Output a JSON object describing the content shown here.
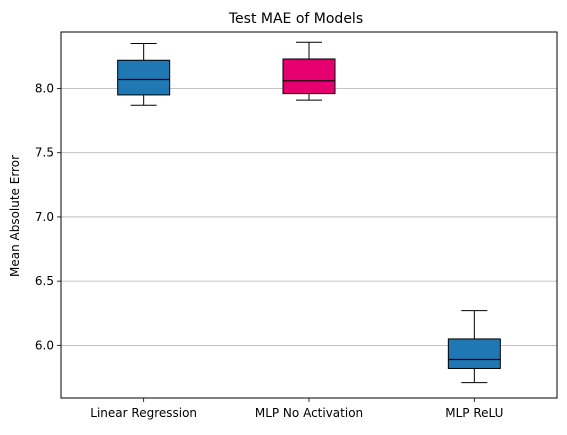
{
  "chart_data": {
    "type": "box",
    "title": "Test MAE of Models",
    "xlabel": "",
    "ylabel": "Mean Absolute Error",
    "categories": [
      "Linear Regression",
      "MLP No Activation",
      "MLP ReLU"
    ],
    "ylim": [
      5.59,
      8.44
    ],
    "yticks": [
      6.0,
      6.5,
      7.0,
      7.5,
      8.0
    ],
    "ytick_labels": [
      "6.0",
      "6.5",
      "7.0",
      "7.5",
      "8.0"
    ],
    "grid": {
      "y": true,
      "x": false
    },
    "boxes": [
      {
        "name": "Linear Regression",
        "whisker_low": 7.87,
        "q1": 7.95,
        "median": 8.07,
        "q3": 8.22,
        "whisker_high": 8.35,
        "color": "#1f77b4"
      },
      {
        "name": "MLP No Activation",
        "whisker_low": 7.91,
        "q1": 7.96,
        "median": 8.06,
        "q3": 8.23,
        "whisker_high": 8.36,
        "color": "#e6006f"
      },
      {
        "name": "MLP ReLU",
        "whisker_low": 5.71,
        "q1": 5.82,
        "median": 5.89,
        "q3": 6.05,
        "whisker_high": 6.27,
        "color": "#1f77b4"
      }
    ],
    "colors": {
      "grid": "#b0b0b0",
      "axis": "#000000",
      "median": "#000000",
      "whisker": "#000000"
    }
  }
}
